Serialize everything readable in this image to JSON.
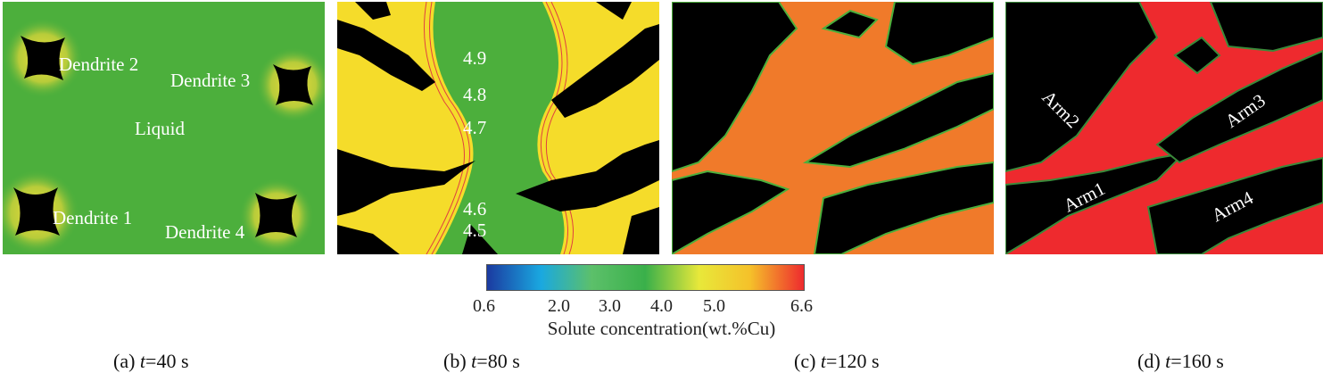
{
  "panels": [
    {
      "id": "a",
      "bg": "#4caf3c",
      "labels": [
        "Dendrite 2",
        "Dendrite 3",
        "Liquid",
        "Dendrite 1",
        "Dendrite 4"
      ],
      "caption_prefix": "(a) ",
      "caption_var": "t",
      "caption_value": "=40 s"
    },
    {
      "id": "b",
      "bg": "#f5dc2a",
      "contours": [
        "4.9",
        "4.8",
        "4.7",
        "4.6",
        "4.5"
      ],
      "caption_prefix": "(b) ",
      "caption_var": "t",
      "caption_value": "=80 s"
    },
    {
      "id": "c",
      "bg": "#f07a2a",
      "caption_prefix": "(c) ",
      "caption_var": "t",
      "caption_value": "=120 s"
    },
    {
      "id": "d",
      "bg": "#ee2a2e",
      "labels": [
        "Arm2",
        "Arm3",
        "Arm1",
        "Arm4"
      ],
      "caption_prefix": "(d) ",
      "caption_var": "t",
      "caption_value": "=160 s"
    }
  ],
  "colorbar": {
    "ticks": [
      "0.6",
      "2.0",
      "3.0",
      "4.0",
      "5.0",
      "6.6"
    ],
    "tick_values": [
      0.6,
      2.0,
      3.0,
      4.0,
      5.0,
      6.6
    ],
    "min": 0.6,
    "max": 6.6,
    "title": "Solute concentration(wt.%Cu)",
    "colors": [
      "#1b3aa0",
      "#1aa8e0",
      "#5cc06a",
      "#3ab04a",
      "#e8e83a",
      "#f5c12a",
      "#ee2a2e"
    ]
  }
}
